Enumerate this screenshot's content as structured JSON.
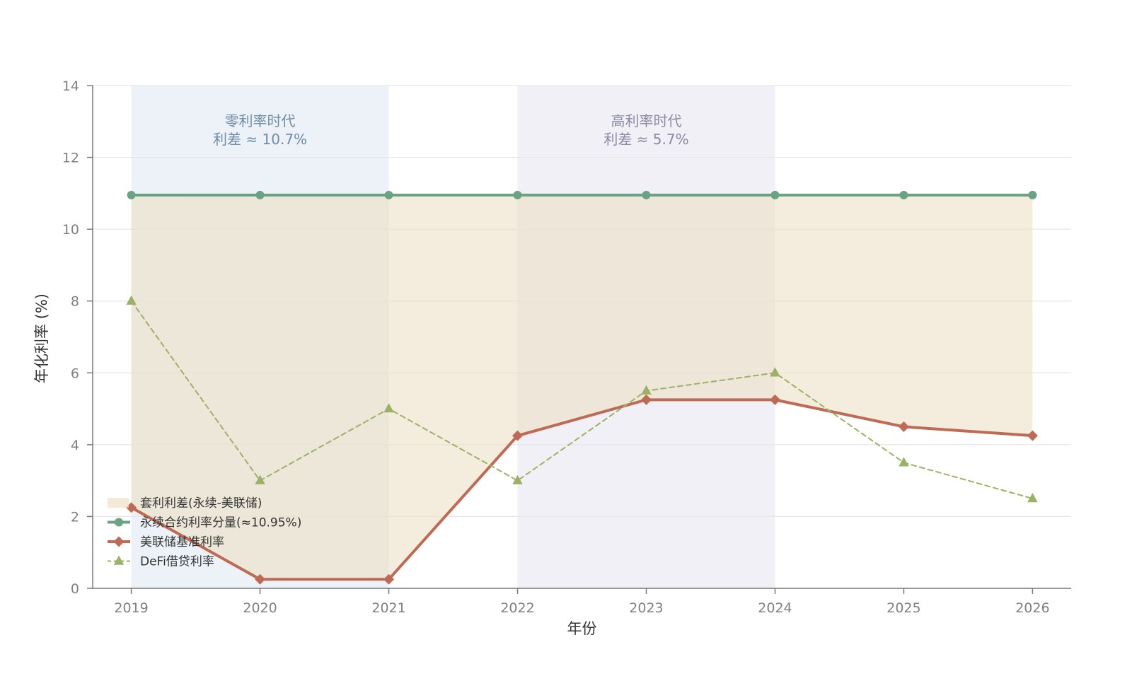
{
  "chart_data": {
    "type": "line",
    "x_label": "年份",
    "y_label": "年化利率 (%)",
    "x_ticks": [
      "2019",
      "2020",
      "2021",
      "2022",
      "2023",
      "2024",
      "2025",
      "2026"
    ],
    "y_ticks": [
      "0",
      "2",
      "4",
      "6",
      "8",
      "10",
      "12",
      "14"
    ],
    "xlim": [
      2018.7,
      2026.3
    ],
    "ylim": [
      0,
      14
    ],
    "grid": "horizontal",
    "legend_position": "lower-left",
    "x": [
      2019,
      2020,
      2021,
      2022,
      2023,
      2024,
      2025,
      2026
    ],
    "series": [
      {
        "name": "永续合约利率分量(≈10.95%)",
        "values": [
          10.95,
          10.95,
          10.95,
          10.95,
          10.95,
          10.95,
          10.95,
          10.95
        ],
        "color": "#6aa284",
        "marker": "circle",
        "style": "solid"
      },
      {
        "name": "美联储基准利率",
        "values": [
          2.25,
          0.25,
          0.25,
          4.25,
          5.25,
          5.25,
          4.5,
          4.25
        ],
        "color": "#bf6a54",
        "marker": "diamond",
        "style": "solid"
      },
      {
        "name": "DeFi借贷利率",
        "values": [
          8,
          3,
          5,
          3,
          5.5,
          6,
          3.5,
          2.5
        ],
        "color": "#9bb266",
        "marker": "triangle",
        "style": "dashed"
      }
    ],
    "fill_between": {
      "name": "套利利差(永续-美联储)",
      "upper_series": 0,
      "lower_series": 1,
      "color": "#ecdfc4"
    },
    "periods": [
      {
        "start": 2019,
        "end": 2021,
        "label_line1": "零利率时代",
        "label_line2": "利差 ≈ 10.7%",
        "fill_color": "#e9eff7",
        "text_color": "#6f8ca8"
      },
      {
        "start": 2022,
        "end": 2024,
        "label_line1": "高利率时代",
        "label_line2": "利差 ≈ 5.7%",
        "fill_color": "#eeecf4",
        "text_color": "#8a8aa0"
      }
    ]
  }
}
